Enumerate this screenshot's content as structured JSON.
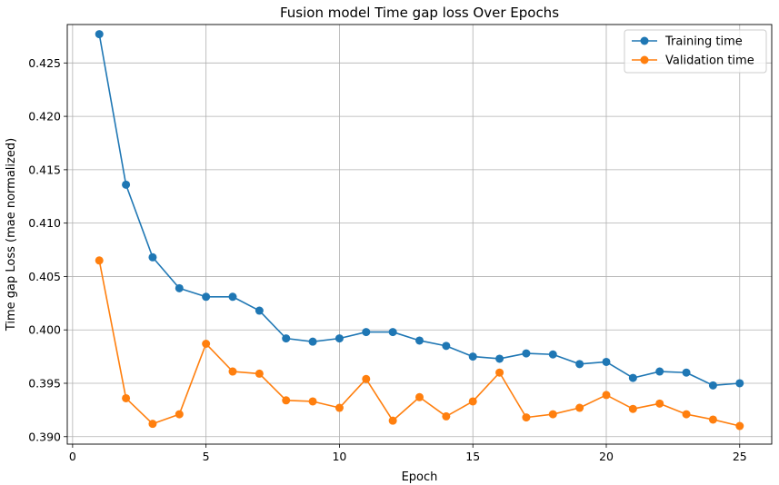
{
  "chart_data": {
    "type": "line",
    "title": "Fusion model Time gap loss Over Epochs",
    "xlabel": "Epoch",
    "ylabel": "Time gap Loss (mae normalized)",
    "xlim": [
      -0.2,
      26.2
    ],
    "ylim": [
      0.3893,
      0.4286
    ],
    "xticks": [
      0,
      5,
      10,
      15,
      20,
      25
    ],
    "yticks": [
      0.39,
      0.395,
      0.4,
      0.405,
      0.41,
      0.415,
      0.42,
      0.425
    ],
    "ytick_labels": [
      "0.390",
      "0.395",
      "0.400",
      "0.405",
      "0.410",
      "0.415",
      "0.420",
      "0.425"
    ],
    "grid": true,
    "legend_position": "top-right",
    "x": [
      1,
      2,
      3,
      4,
      5,
      6,
      7,
      8,
      9,
      10,
      11,
      12,
      13,
      14,
      15,
      16,
      17,
      18,
      19,
      20,
      21,
      22,
      23,
      24,
      25
    ],
    "series": [
      {
        "name": "Training time",
        "color": "#1f77b4",
        "values": [
          0.4277,
          0.4136,
          0.4068,
          0.4039,
          0.4031,
          0.4031,
          0.4018,
          0.3992,
          0.3989,
          0.3992,
          0.3998,
          0.3998,
          0.399,
          0.3985,
          0.3975,
          0.3973,
          0.3978,
          0.3977,
          0.3968,
          0.397,
          0.3955,
          0.3961,
          0.396,
          0.3948,
          0.395
        ]
      },
      {
        "name": "Validation time",
        "color": "#ff7f0e",
        "values": [
          0.4065,
          0.3936,
          0.3912,
          0.3921,
          0.3987,
          0.3961,
          0.3959,
          0.3934,
          0.3933,
          0.3927,
          0.3954,
          0.3915,
          0.3937,
          0.3919,
          0.3933,
          0.396,
          0.3918,
          0.3921,
          0.3927,
          0.3939,
          0.3926,
          0.3931,
          0.3921,
          0.3916,
          0.391
        ]
      }
    ]
  }
}
